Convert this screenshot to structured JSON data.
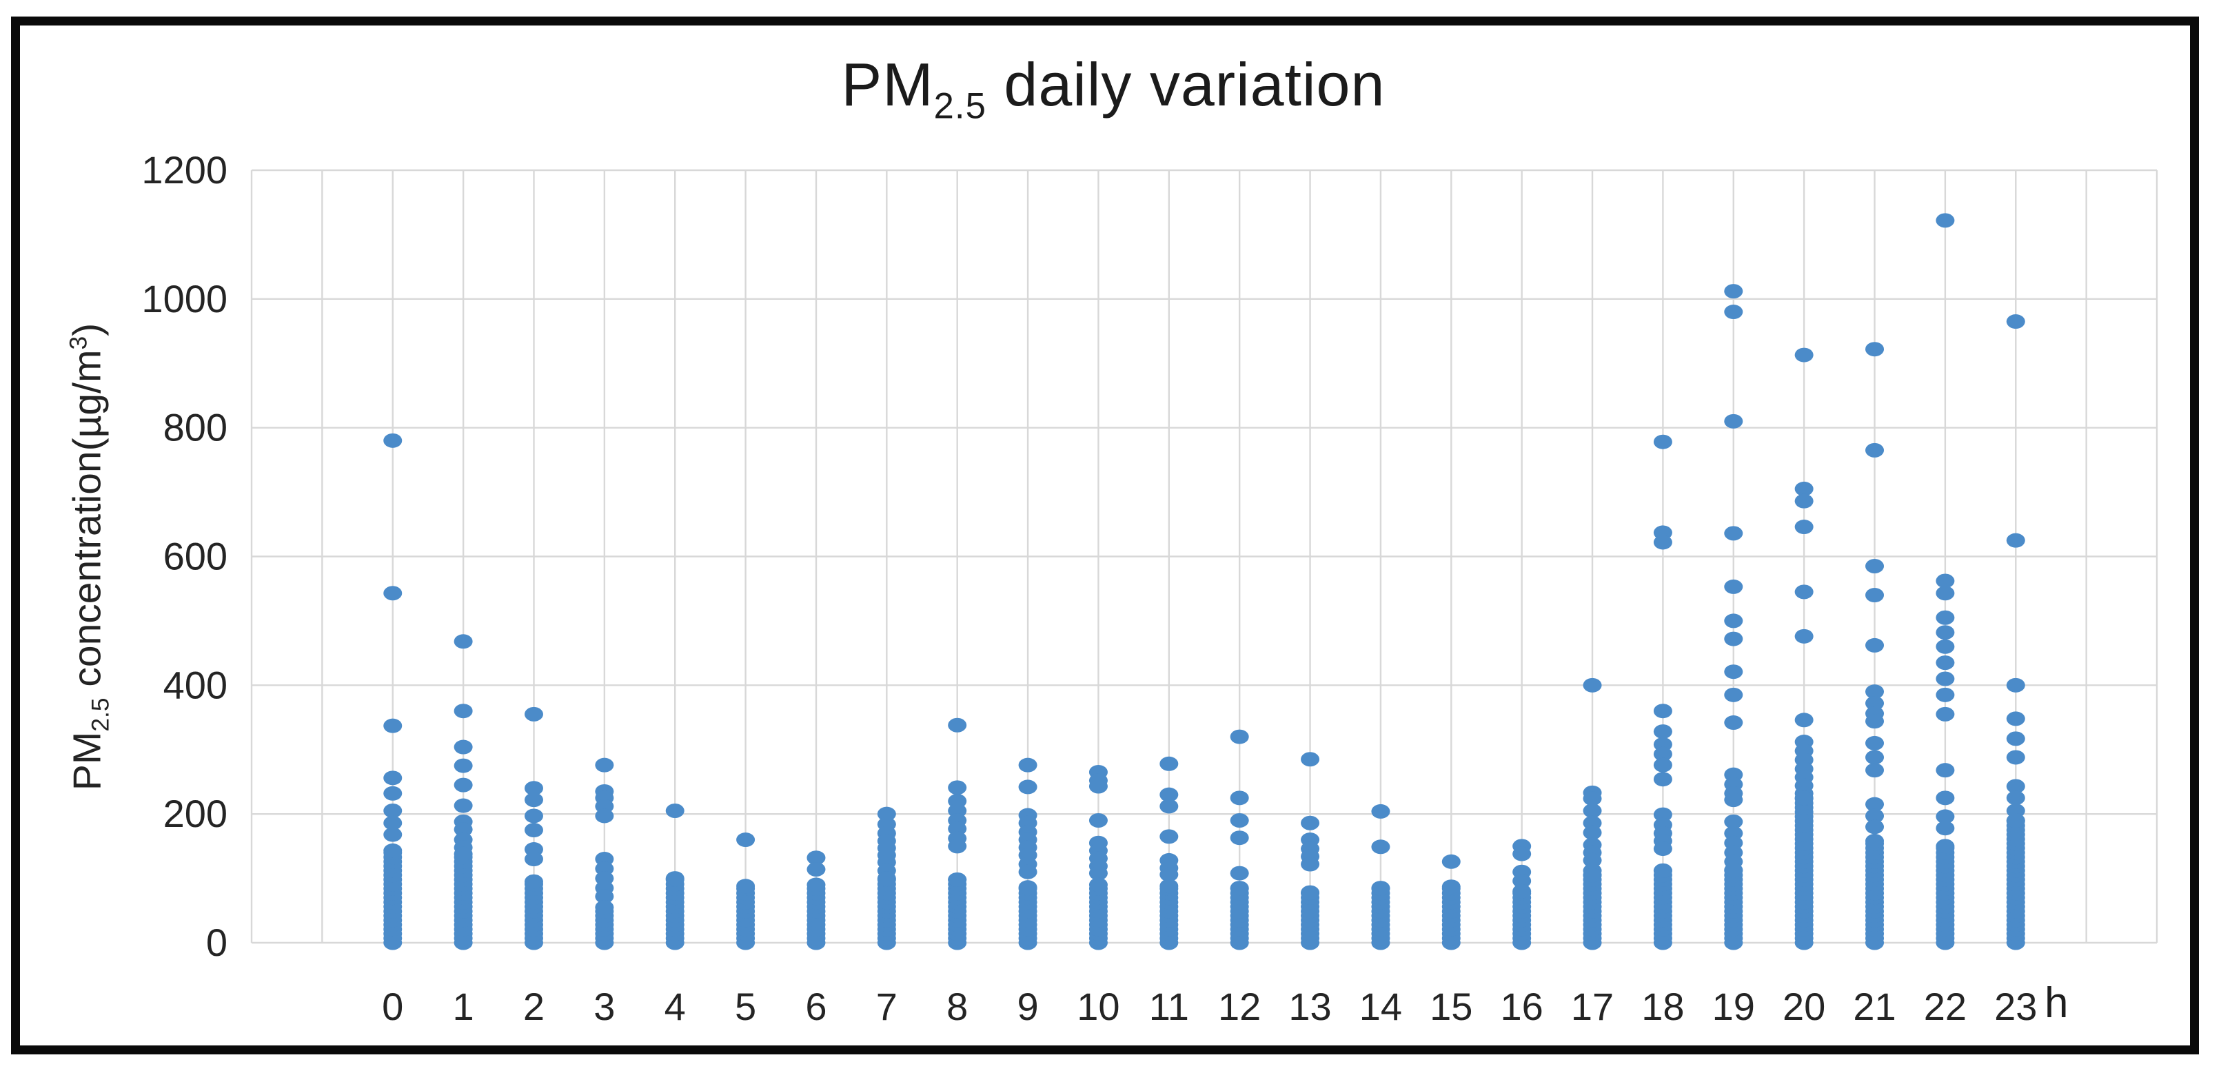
{
  "chart_data": {
    "type": "scatter",
    "title": "PM2.5 daily variation",
    "title_parts": {
      "base": "PM",
      "sub": "2.5",
      "rest": " daily variation"
    },
    "ylabel": "PM2.5 concentration(µg/m3)",
    "ylabel_parts": {
      "p1": "PM",
      "sub": "2.5",
      "p2": " concentration(µg/m",
      "sup": "3",
      "p3": ")"
    },
    "xlabel": "h",
    "x_categories": [
      0,
      1,
      2,
      3,
      4,
      5,
      6,
      7,
      8,
      9,
      10,
      11,
      12,
      13,
      14,
      15,
      16,
      17,
      18,
      19,
      20,
      21,
      22,
      23
    ],
    "yticks": [
      0,
      200,
      400,
      600,
      800,
      1000,
      1200
    ],
    "ylim": [
      0,
      1200
    ],
    "grid": true,
    "legend": "none",
    "marker_color": "#4B8BC9",
    "gridline_color": "#d8d8d8",
    "tick_color": "#242424",
    "series": [
      {
        "h": 0,
        "pts": [
          780,
          543,
          337,
          256,
          232,
          205,
          186,
          168
        ],
        "dense": [
          0,
          143
        ]
      },
      {
        "h": 1,
        "pts": [
          468,
          360,
          304,
          275,
          245,
          213,
          188,
          176,
          160,
          148
        ],
        "dense": [
          0,
          138
        ]
      },
      {
        "h": 2,
        "pts": [
          355,
          240,
          222,
          197,
          175,
          145,
          130
        ],
        "dense": [
          0,
          95
        ]
      },
      {
        "h": 3,
        "pts": [
          276,
          235,
          225,
          212,
          197,
          130,
          115,
          100,
          85,
          72
        ],
        "dense": [
          0,
          55
        ]
      },
      {
        "h": 4,
        "pts": [
          205
        ],
        "dense": [
          0,
          100
        ]
      },
      {
        "h": 5,
        "pts": [
          160
        ],
        "dense": [
          0,
          88
        ]
      },
      {
        "h": 6,
        "pts": [
          132,
          114
        ],
        "dense": [
          0,
          90
        ]
      },
      {
        "h": 7,
        "pts": [
          200,
          184,
          170,
          158,
          147,
          136,
          125,
          112
        ],
        "dense": [
          0,
          100
        ]
      },
      {
        "h": 8,
        "pts": [
          338,
          241,
          220,
          205,
          190,
          177,
          162,
          150
        ],
        "dense": [
          0,
          98
        ]
      },
      {
        "h": 9,
        "pts": [
          276,
          242,
          198,
          186,
          172,
          160,
          148,
          136,
          122,
          110
        ],
        "dense": [
          0,
          86
        ]
      },
      {
        "h": 10,
        "pts": [
          265,
          252,
          243,
          190,
          155,
          143,
          131,
          119,
          108
        ],
        "dense": [
          0,
          90
        ]
      },
      {
        "h": 11,
        "pts": [
          278,
          230,
          212,
          165,
          128,
          116,
          106
        ],
        "dense": [
          0,
          88
        ]
      },
      {
        "h": 12,
        "pts": [
          320,
          225,
          190,
          163,
          108
        ],
        "dense": [
          0,
          85
        ]
      },
      {
        "h": 13,
        "pts": [
          285,
          186,
          160,
          146,
          134,
          122
        ],
        "dense": [
          0,
          78
        ]
      },
      {
        "h": 14,
        "pts": [
          204,
          149
        ],
        "dense": [
          0,
          85
        ]
      },
      {
        "h": 15,
        "pts": [
          126
        ],
        "dense": [
          0,
          87
        ]
      },
      {
        "h": 16,
        "pts": [
          150,
          138,
          110,
          96
        ],
        "dense": [
          0,
          80
        ]
      },
      {
        "h": 17,
        "pts": [
          400,
          233,
          224,
          205,
          186,
          171,
          152,
          140,
          128,
          112
        ],
        "dense": [
          0,
          105
        ]
      },
      {
        "h": 18,
        "pts": [
          778,
          637,
          622,
          360,
          328,
          308,
          293,
          276,
          254,
          199,
          183,
          170,
          158,
          146
        ],
        "dense": [
          0,
          112
        ]
      },
      {
        "h": 19,
        "pts": [
          1012,
          980,
          810,
          636,
          553,
          500,
          472,
          421,
          385,
          342,
          261,
          246,
          232,
          222,
          188,
          170,
          155,
          140,
          126
        ],
        "dense": [
          0,
          113
        ]
      },
      {
        "h": 20,
        "pts": [
          913,
          705,
          686,
          646,
          545,
          476,
          346,
          312,
          298,
          284,
          270,
          257,
          244,
          232
        ],
        "dense": [
          0,
          225
        ]
      },
      {
        "h": 21,
        "pts": [
          922,
          765,
          585,
          540,
          462,
          390,
          372,
          356,
          344,
          310,
          288,
          268,
          215,
          197,
          180
        ],
        "dense": [
          0,
          158
        ]
      },
      {
        "h": 22,
        "pts": [
          1122,
          562,
          543,
          505,
          482,
          460,
          435,
          410,
          385,
          355,
          268,
          225,
          196,
          178
        ],
        "dense": [
          0,
          150
        ]
      },
      {
        "h": 23,
        "pts": [
          965,
          625,
          400,
          348,
          317,
          288,
          243,
          225,
          205
        ],
        "dense": [
          0,
          190
        ]
      }
    ]
  }
}
